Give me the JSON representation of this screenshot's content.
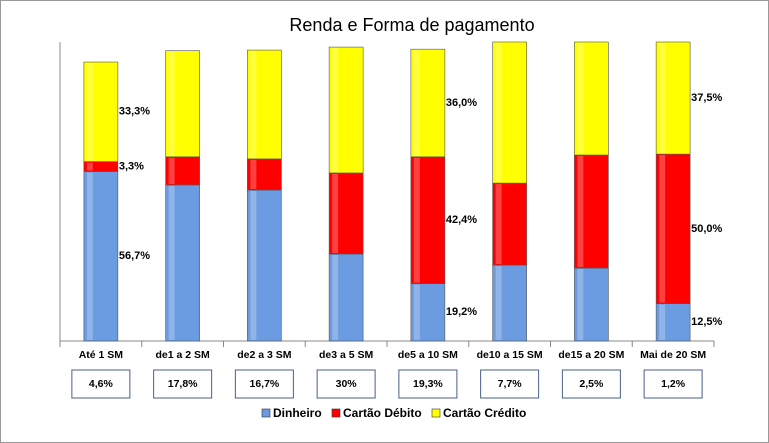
{
  "chart_data": {
    "type": "stacked_bar",
    "title": "Renda e Forma de pagamento",
    "categories": [
      "Até 1 SM",
      "de1 a 2 SM",
      "de2 a 3 SM",
      "de3 a 5 SM",
      "de5 a 10 SM",
      "de10 a 15 SM",
      "de15 a 20 SM",
      "Mai de 20 SM"
    ],
    "series": [
      {
        "name": "Dinheiro",
        "color": "#6b9be0",
        "values": [
          56.7,
          52.2,
          50.5,
          29.1,
          19.2,
          25.4,
          24.4,
          12.5
        ],
        "value_labels": [
          "56,7%",
          null,
          null,
          null,
          "19,2%",
          null,
          null,
          "12,5%"
        ]
      },
      {
        "name": "Cartão Débito",
        "color": "#ff0000",
        "values": [
          3.3,
          9.4,
          10.4,
          27.1,
          42.4,
          27.4,
          37.8,
          50.0
        ],
        "value_labels": [
          "3,3%",
          null,
          null,
          null,
          "42,4%",
          null,
          null,
          "50,0%"
        ]
      },
      {
        "name": "Cartão Crédito",
        "color": "#ffff00",
        "values": [
          33.3,
          35.5,
          36.4,
          42.1,
          36.0,
          47.2,
          37.8,
          37.5
        ],
        "value_labels": [
          "33,3%",
          null,
          null,
          null,
          "36,0%",
          null,
          null,
          "37,5%"
        ]
      }
    ],
    "category_notes": [
      "4,6%",
      "17,8%",
      "16,7%",
      "30%",
      "19,3%",
      "7,7%",
      "2,5%",
      "1,2%"
    ],
    "ylim": [
      0,
      100
    ],
    "legend": "bottom"
  }
}
